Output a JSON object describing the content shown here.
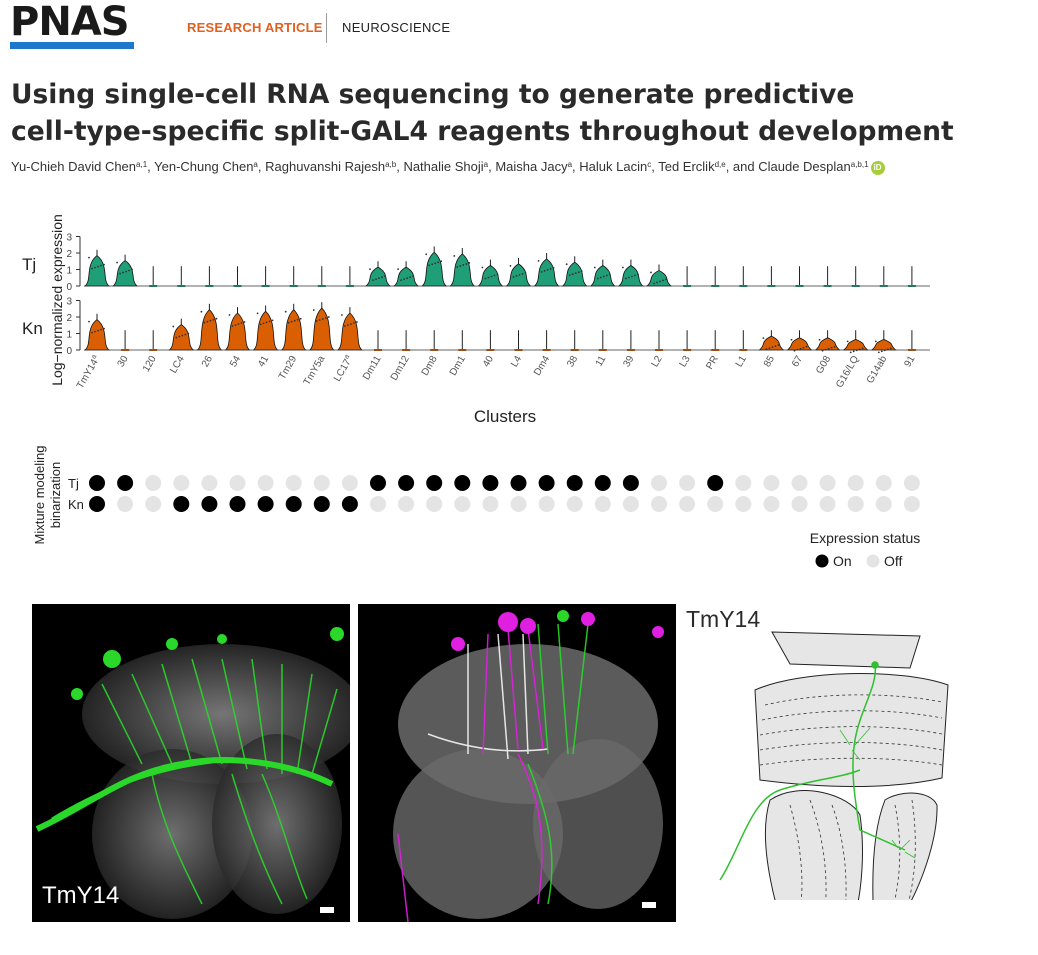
{
  "header": {
    "logo_text": "PNAS",
    "logo_color": "#1f77c9",
    "category": "RESEARCH ARTICLE",
    "category_color": "#e35f1e",
    "subject": "NEUROSCIENCE"
  },
  "article": {
    "title_line1": "Using single-cell RNA sequencing to generate predictive",
    "title_line2": "cell-type-specific split-GAL4 reagents throughout development",
    "authors": [
      {
        "name": "Yu-Chieh David Chen",
        "aff": "a,1"
      },
      {
        "name": "Yen-Chung Chen",
        "aff": "a"
      },
      {
        "name": "Raghuvanshi Rajesh",
        "aff": "a,b"
      },
      {
        "name": "Nathalie Shoji",
        "aff": "a"
      },
      {
        "name": "Maisha Jacy",
        "aff": "a"
      },
      {
        "name": "Haluk Lacin",
        "aff": "c"
      },
      {
        "name": "Ted Erclik",
        "aff": "d,e"
      },
      {
        "name": "Claude Desplan",
        "aff": "a,b,1"
      }
    ],
    "orcid_icon": "orcid-icon"
  },
  "chart_data": {
    "type": "violin",
    "ylabel": "Log−normalized expression",
    "xlabel": "Clusters",
    "yticks": [
      0,
      1,
      2,
      3
    ],
    "ylim": [
      0,
      3
    ],
    "genes": [
      "Tj",
      "Kn"
    ],
    "categories": [
      "TmY14",
      "30",
      "120",
      "LC4",
      "26",
      "54",
      "41",
      "Tm29",
      "TmY5a",
      "LC17",
      "Dm11",
      "Dm12",
      "Dm8",
      "Dm1",
      "40",
      "L4",
      "Dm4",
      "38",
      "11",
      "39",
      "L2",
      "L3",
      "PR",
      "L1",
      "85",
      "67",
      "G08",
      "G16/LQ",
      "G14ab",
      "91"
    ],
    "category_superscripts": {
      "TmY14": "a",
      "LC17": "a"
    },
    "series": [
      {
        "name": "Tj",
        "color": "#1f9e77",
        "values": [
          1.6,
          1.3,
          0.1,
          0,
          0,
          0,
          0,
          0,
          0,
          0,
          0.9,
          0.9,
          1.8,
          1.7,
          1.0,
          1.1,
          1.4,
          1.2,
          1.0,
          1.0,
          0.7,
          0.2,
          0.2,
          0.1,
          0.1,
          0,
          0,
          0,
          0,
          0
        ]
      },
      {
        "name": "Kn",
        "color": "#d95f02",
        "values": [
          1.6,
          0.1,
          0.1,
          1.3,
          2.2,
          2.0,
          2.1,
          2.2,
          2.3,
          2.0,
          0,
          0,
          0.1,
          0,
          0,
          0.1,
          0.1,
          0.2,
          0,
          0.1,
          0,
          0,
          0,
          0,
          0.6,
          0.5,
          0.5,
          0.4,
          0.4,
          0.2
        ]
      }
    ],
    "binarization": {
      "ylabel": "Mixture modeling binarization",
      "Tj": [
        1,
        1,
        0,
        0,
        0,
        0,
        0,
        0,
        0,
        0,
        1,
        1,
        1,
        1,
        1,
        1,
        1,
        1,
        1,
        1,
        0,
        0,
        1,
        0,
        0,
        0,
        0,
        0,
        0,
        0
      ],
      "Kn": [
        1,
        0,
        0,
        1,
        1,
        1,
        1,
        1,
        1,
        1,
        0,
        0,
        0,
        0,
        0,
        0,
        0,
        0,
        0,
        0,
        0,
        0,
        0,
        0,
        0,
        0,
        0,
        0,
        0,
        0
      ],
      "legend_title": "Expression status",
      "on_label": "On",
      "off_label": "Off",
      "on_color": "#000000",
      "off_color": "#e4e4e4"
    }
  },
  "images": {
    "micro1_label": "TmY14",
    "micro2_label": "",
    "diagram_label": "TmY14",
    "green_color": "#2ad82a",
    "magenta_color": "#e020e0"
  }
}
